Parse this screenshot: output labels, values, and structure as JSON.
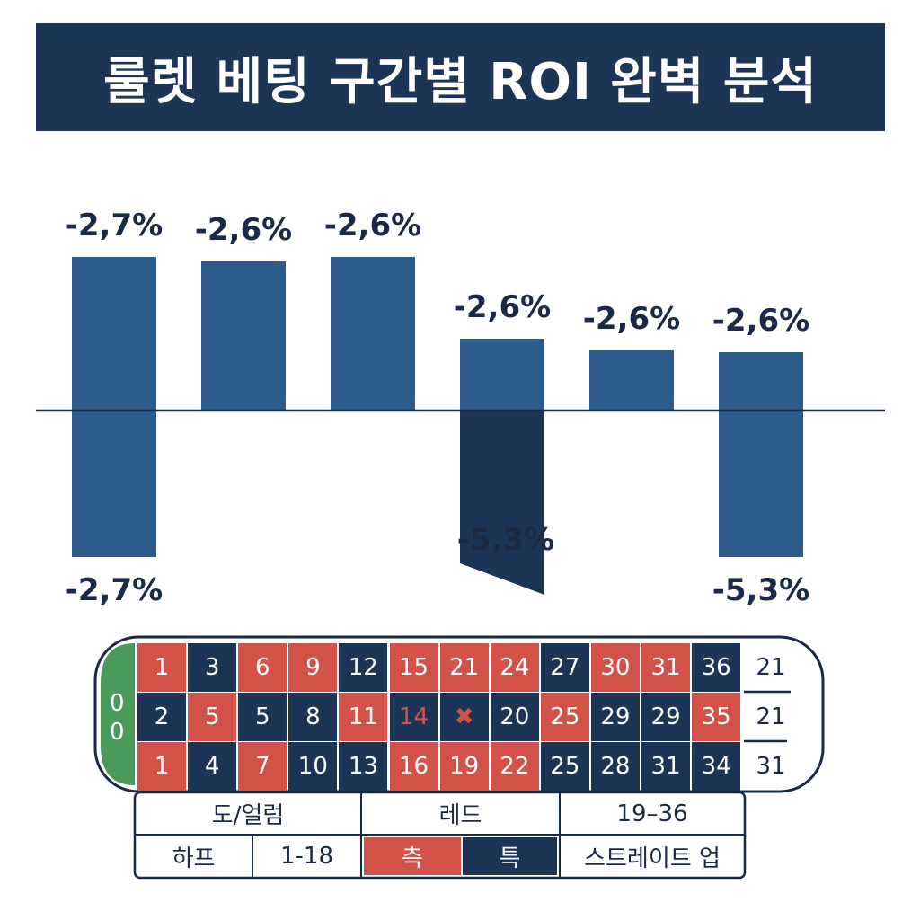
{
  "title": "룰렛 베팅 구간별 ROI 완벽 분석",
  "colors": {
    "bar": "#2c5b8c",
    "bar_dark": "#1c3556",
    "red": "#d2524a",
    "green": "#4a9a5a",
    "title_bg": "#1c3556"
  },
  "chart_data": {
    "type": "bar",
    "title": "룰렛 베팅 구간별 ROI 완벽 분석",
    "categories": [
      "",
      "",
      "",
      "",
      "",
      ""
    ],
    "series": [
      {
        "values": [
          -2.7,
          -2.6,
          -2.6,
          -2.6,
          -2.6,
          -2.6
        ],
        "labels": [
          "-2,7%",
          "-2,6%",
          "-2,6%",
          "-2,6%",
          "-2,6%",
          "-2,6%"
        ]
      },
      {
        "values": [
          -2.7,
          null,
          null,
          -5.3,
          null,
          -5.3
        ],
        "labels": [
          "-2,7%",
          "",
          "",
          "-5,3%",
          "",
          "-5,3%"
        ]
      }
    ]
  },
  "table": {
    "zero": "0",
    "rows": [
      {
        "cells": [
          [
            "1",
            "red"
          ],
          [
            "3",
            "blk"
          ],
          [
            "6",
            "red"
          ],
          [
            "9",
            "red"
          ],
          [
            "12",
            "blk"
          ],
          [
            "15",
            "red"
          ],
          [
            "21",
            "red"
          ],
          [
            "24",
            "red"
          ],
          [
            "27",
            "blk"
          ],
          [
            "30",
            "red"
          ],
          [
            "31",
            "red"
          ],
          [
            "36",
            "blk"
          ]
        ],
        "side": "21"
      },
      {
        "cells": [
          [
            "2",
            "blk"
          ],
          [
            "5",
            "red"
          ],
          [
            "5",
            "blk"
          ],
          [
            "8",
            "blk"
          ],
          [
            "11",
            "red"
          ],
          [
            "14",
            "blk"
          ],
          [
            "✖",
            "blk"
          ],
          [
            "20",
            "blk"
          ],
          [
            "25",
            "red"
          ],
          [
            "29",
            "blk"
          ],
          [
            "29",
            "blk"
          ],
          [
            "35",
            "red"
          ]
        ],
        "side": "21"
      },
      {
        "cells": [
          [
            "1",
            "red"
          ],
          [
            "4",
            "blk"
          ],
          [
            "7",
            "red"
          ],
          [
            "10",
            "blk"
          ],
          [
            "13",
            "blk"
          ],
          [
            "16",
            "red"
          ],
          [
            "19",
            "red"
          ],
          [
            "22",
            "red"
          ],
          [
            "25",
            "blk"
          ],
          [
            "28",
            "blk"
          ],
          [
            "31",
            "blk"
          ],
          [
            "34",
            "blk"
          ]
        ],
        "side": "31"
      }
    ],
    "bottom": {
      "row1": [
        "도/얼럼",
        "레드",
        "19–36"
      ],
      "row2": [
        "하프",
        "1-18",
        "측",
        "특",
        "스트레이트 업"
      ]
    }
  }
}
